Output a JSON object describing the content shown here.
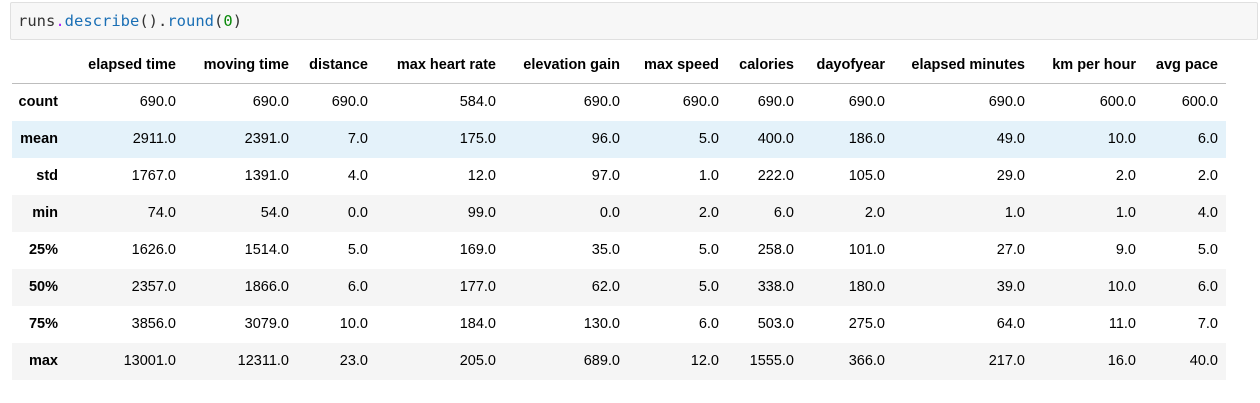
{
  "code": {
    "object": "runs",
    "dot1": ".",
    "method1": "describe",
    "paren1": "().",
    "method2": "round",
    "paren_open": "(",
    "arg": "0",
    "paren_close": ")"
  },
  "table": {
    "columns": [
      "elapsed time",
      "moving time",
      "distance",
      "max heart rate",
      "elevation gain",
      "max speed",
      "calories",
      "dayofyear",
      "elapsed minutes",
      "km per hour",
      "avg pace"
    ],
    "rows": [
      {
        "label": "count",
        "values": [
          "690.0",
          "690.0",
          "690.0",
          "584.0",
          "690.0",
          "690.0",
          "690.0",
          "690.0",
          "690.0",
          "600.0",
          "600.0"
        ]
      },
      {
        "label": "mean",
        "values": [
          "2911.0",
          "2391.0",
          "7.0",
          "175.0",
          "96.0",
          "5.0",
          "400.0",
          "186.0",
          "49.0",
          "10.0",
          "6.0"
        ]
      },
      {
        "label": "std",
        "values": [
          "1767.0",
          "1391.0",
          "4.0",
          "12.0",
          "97.0",
          "1.0",
          "222.0",
          "105.0",
          "29.0",
          "2.0",
          "2.0"
        ]
      },
      {
        "label": "min",
        "values": [
          "74.0",
          "54.0",
          "0.0",
          "99.0",
          "0.0",
          "2.0",
          "6.0",
          "2.0",
          "1.0",
          "1.0",
          "4.0"
        ]
      },
      {
        "label": "25%",
        "values": [
          "1626.0",
          "1514.0",
          "5.0",
          "169.0",
          "35.0",
          "5.0",
          "258.0",
          "101.0",
          "27.0",
          "9.0",
          "5.0"
        ]
      },
      {
        "label": "50%",
        "values": [
          "2357.0",
          "1866.0",
          "6.0",
          "177.0",
          "62.0",
          "5.0",
          "338.0",
          "180.0",
          "39.0",
          "10.0",
          "6.0"
        ]
      },
      {
        "label": "75%",
        "values": [
          "3856.0",
          "3079.0",
          "10.0",
          "184.0",
          "130.0",
          "6.0",
          "503.0",
          "275.0",
          "64.0",
          "11.0",
          "7.0"
        ]
      },
      {
        "label": "max",
        "values": [
          "13001.0",
          "12311.0",
          "23.0",
          "205.0",
          "689.0",
          "12.0",
          "1555.0",
          "366.0",
          "217.0",
          "16.0",
          "40.0"
        ]
      }
    ],
    "highlighted_row": "mean"
  },
  "colors": {
    "code_background": "#f7f7f7",
    "row_stripe": "#f5f5f5",
    "row_hover": "#e4f2fa"
  }
}
